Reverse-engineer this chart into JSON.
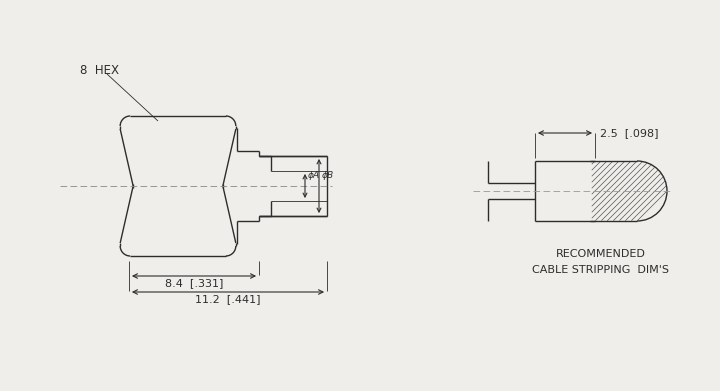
{
  "bg_color": "#f0eeea",
  "line_color": "#2d2d2d",
  "line_width": 1.0,
  "thin_lw": 0.6,
  "font_color": "#2d2d2d",
  "label_8hex": "8  HEX",
  "label_dim1": "8.4  [.331]",
  "label_dim2": "11.2  [.441]",
  "label_dim3": "2.5  [.098]",
  "label_rec1": "RECOMMENDED",
  "label_rec2": "CABLE STRIPPING  DIM'S",
  "font_size": 8.0,
  "title_font": 8.5
}
